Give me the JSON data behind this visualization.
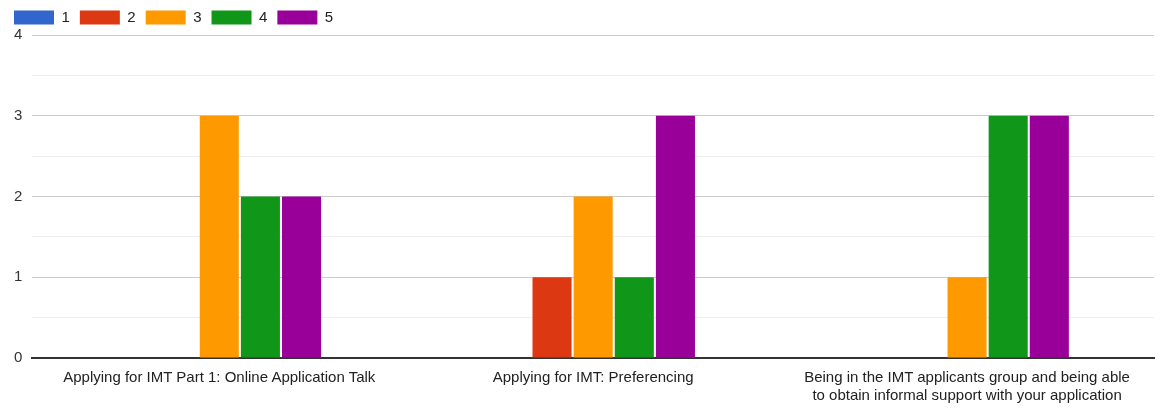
{
  "chart_data": {
    "type": "bar",
    "categories": [
      "Applying for IMT Part 1: Online Application Talk",
      "Applying for IMT: Preferencing",
      "Being in the IMT applicants group and being able to obtain informal support with your application"
    ],
    "series": [
      {
        "name": "1",
        "color": "#3366cc",
        "values": [
          0,
          0,
          0
        ]
      },
      {
        "name": "2",
        "color": "#dc3912",
        "values": [
          0,
          1,
          0
        ]
      },
      {
        "name": "3",
        "color": "#ff9900",
        "values": [
          3,
          2,
          1
        ]
      },
      {
        "name": "4",
        "color": "#109618",
        "values": [
          2,
          1,
          3
        ]
      },
      {
        "name": "5",
        "color": "#990099",
        "values": [
          2,
          3,
          3
        ]
      }
    ],
    "ylim": [
      0,
      4
    ],
    "yticks": [
      0,
      {
        "value": 0.5,
        "label": null
      },
      1,
      {
        "value": 1.5,
        "label": null
      },
      2,
      {
        "value": 2.5,
        "label": null
      },
      3,
      {
        "value": 3.5,
        "label": null
      },
      4
    ],
    "grid": "y",
    "legend": "top left"
  }
}
